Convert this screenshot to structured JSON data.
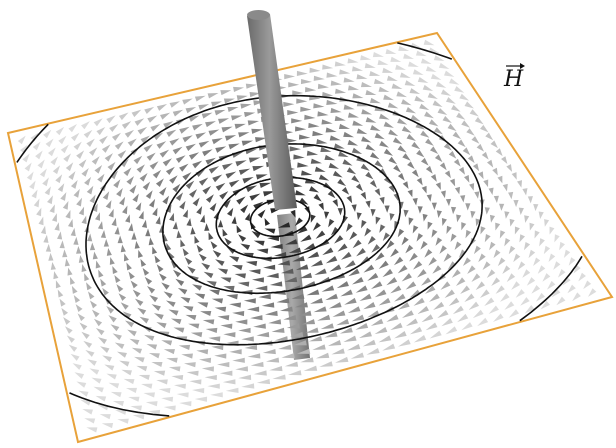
{
  "label": "H"
}
